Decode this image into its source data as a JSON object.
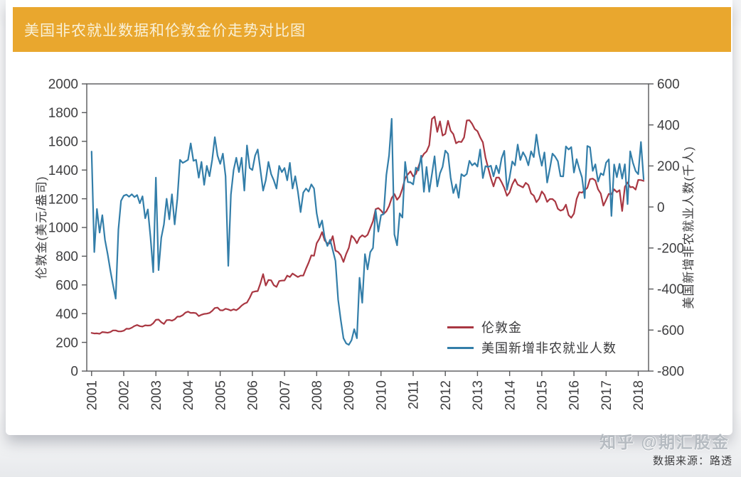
{
  "banner": {
    "title": "美国非农就业数据和伦敦金价走势对比图",
    "bg_color": "#e9a72e",
    "text_color": "#f9f1d8"
  },
  "caption": "数据来源：路透",
  "watermark": "知乎 @期汇股金",
  "chart_data": {
    "type": "line",
    "title": "美国非农就业数据和伦敦金价走势对比图",
    "x_start_year": 2001,
    "x_interval": "monthly",
    "x_ticks": [
      2001,
      2002,
      2003,
      2004,
      2005,
      2006,
      2007,
      2008,
      2009,
      2010,
      2011,
      2012,
      2013,
      2014,
      2015,
      2016,
      2017,
      2018
    ],
    "left_axis": {
      "label": "伦敦金(美元/盎司)",
      "min": 0,
      "max": 2000,
      "tick_step": 200
    },
    "right_axis": {
      "label": "美国新增非农就业人数(千人)",
      "min": -800,
      "max": 600,
      "tick_step": 200
    },
    "axis_color": "#57585a",
    "tick_label_color": "#3e3e40",
    "legend_position": "inside-bottom-right",
    "grid": false,
    "series": [
      {
        "name": "伦敦金",
        "axis": "left",
        "color": "#a93742",
        "values": [
          266,
          262,
          263,
          260,
          272,
          270,
          267,
          272,
          283,
          283,
          276,
          276,
          281,
          295,
          294,
          302,
          314,
          321,
          313,
          310,
          319,
          317,
          319,
          333,
          357,
          359,
          340,
          328,
          355,
          356,
          351,
          360,
          379,
          379,
          389,
          407,
          414,
          405,
          406,
          403,
          383,
          392,
          398,
          400,
          405,
          420,
          439,
          442,
          424,
          423,
          434,
          429,
          422,
          430,
          424,
          437,
          456,
          470,
          477,
          510,
          550,
          555,
          557,
          611,
          675,
          596,
          634,
          632,
          598,
          586,
          627,
          630,
          631,
          665,
          655,
          679,
          667,
          655,
          665,
          665,
          713,
          755,
          806,
          803,
          890,
          922,
          968,
          910,
          889,
          889,
          940,
          839,
          829,
          807,
          760,
          816,
          858,
          943,
          924,
          890,
          929,
          946,
          934,
          949,
          996,
          1043,
          1127,
          1135,
          1118,
          1095,
          1113,
          1149,
          1205,
          1233,
          1193,
          1216,
          1271,
          1342,
          1370,
          1391,
          1356,
          1373,
          1424,
          1480,
          1513,
          1529,
          1573,
          1756,
          1772,
          1666,
          1739,
          1640,
          1652,
          1743,
          1674,
          1650,
          1586,
          1598,
          1595,
          1627,
          1745,
          1747,
          1722,
          1685,
          1671,
          1628,
          1593,
          1487,
          1414,
          1343,
          1286,
          1347,
          1348,
          1316,
          1276,
          1221,
          1244,
          1300,
          1336,
          1298,
          1289,
          1279,
          1311,
          1296,
          1237,
          1222,
          1176,
          1200,
          1251,
          1227,
          1178,
          1198,
          1198,
          1181,
          1130,
          1117,
          1125,
          1159,
          1086,
          1068,
          1097,
          1199,
          1246,
          1242,
          1260,
          1276,
          1337,
          1340,
          1327,
          1266,
          1236,
          1152,
          1192,
          1234,
          1231,
          1266,
          1246,
          1260,
          1115,
          1283,
          1314,
          1280,
          1282,
          1264,
          1331,
          1330,
          1325
        ]
      },
      {
        "name": "美国新增非农就业人数",
        "axis": "right",
        "color": "#337ea9",
        "values": [
          270,
          -220,
          -10,
          -125,
          -40,
          -160,
          -230,
          -310,
          -380,
          -447,
          -110,
          30,
          55,
          60,
          50,
          62,
          48,
          58,
          18,
          52,
          -55,
          -12,
          -150,
          -318,
          143,
          -308,
          -150,
          -85,
          40,
          -60,
          62,
          -85,
          40,
          230,
          215,
          222,
          230,
          310,
          225,
          230,
          143,
          220,
          108,
          200,
          150,
          230,
          340,
          250,
          210,
          260,
          150,
          -287,
          60,
          180,
          240,
          170,
          240,
          80,
          300,
          190,
          180,
          250,
          280,
          180,
          80,
          130,
          220,
          160,
          130,
          90,
          200,
          170,
          190,
          130,
          215,
          90,
          150,
          75,
          -25,
          70,
          90,
          75,
          110,
          90,
          -31,
          -100,
          -66,
          -150,
          -190,
          -160,
          -210,
          -263,
          -452,
          -551,
          -640,
          -665,
          -672,
          -650,
          -596,
          -640,
          -345,
          -467,
          -230,
          -304,
          -220,
          -200,
          -15,
          -120,
          -40,
          -35,
          156,
          251,
          430,
          -134,
          -187,
          -31,
          -52,
          220,
          121,
          120,
          110,
          192,
          178,
          250,
          74,
          195,
          74,
          160,
          247,
          100,
          164,
          196,
          275,
          259,
          143,
          68,
          110,
          45,
          160,
          150,
          161,
          225,
          203,
          214,
          197,
          280,
          141,
          199,
          195,
          201,
          149,
          202,
          164,
          237,
          274,
          84,
          144,
          222,
          203,
          304,
          229,
          267,
          243,
          203,
          271,
          243,
          353,
          261,
          201,
          266,
          119,
          187,
          260,
          245,
          223,
          150,
          149,
          295,
          280,
          292,
          168,
          233,
          186,
          144,
          43,
          297,
          291,
          176,
          208,
          124,
          164,
          155,
          216,
          232,
          -44,
          207,
          145,
          210,
          138,
          208,
          14,
          271,
          216,
          175,
          160,
          317,
          135
        ]
      }
    ]
  }
}
